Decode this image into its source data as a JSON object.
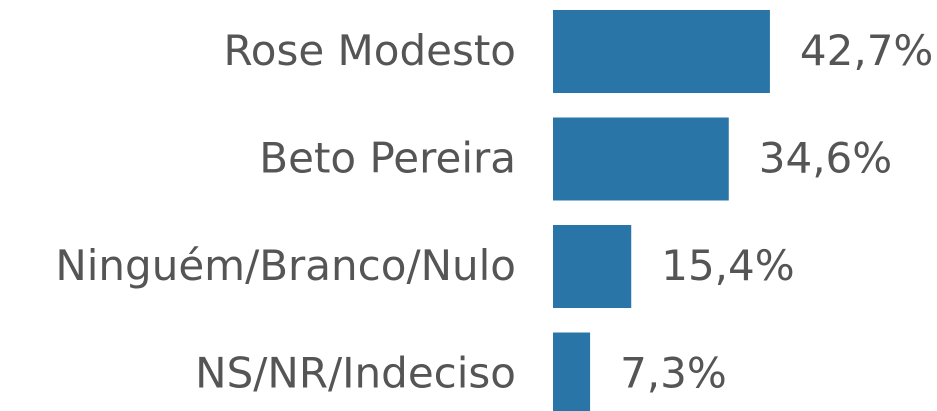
{
  "chart_data": {
    "type": "hbar",
    "categories": [
      "Rose Modesto",
      "Beto Pereira",
      "Ninguém/Branco/Nulo",
      "NS/NR/Indeciso"
    ],
    "values": [
      42.7,
      34.6,
      15.4,
      7.3
    ],
    "value_labels": [
      "42,7%",
      "34,6%",
      "15,4%",
      "7,3%"
    ],
    "color": "#2975a8"
  }
}
